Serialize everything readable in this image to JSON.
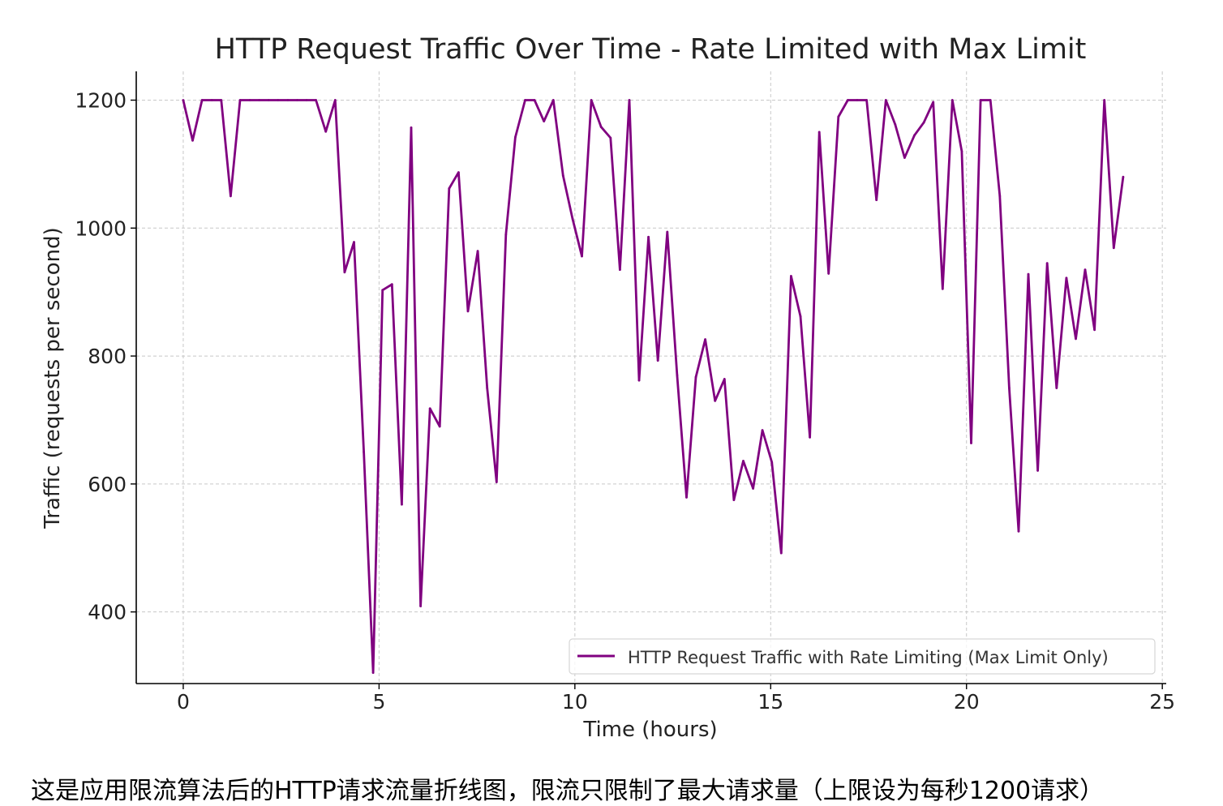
{
  "chart_data": {
    "type": "line",
    "title": "HTTP Request Traffic Over Time - Rate Limited with Max Limit",
    "xlabel": "Time (hours)",
    "ylabel": "Traffic (requests per second)",
    "xlim": [
      -1.2,
      25.1
    ],
    "ylim": [
      288,
      1245
    ],
    "xticks": [
      0,
      5,
      10,
      15,
      20,
      25
    ],
    "yticks": [
      400,
      600,
      800,
      1000,
      1200
    ],
    "grid": true,
    "legend_position": "lower-right",
    "series": [
      {
        "name": "HTTP Request Traffic with Rate Limiting (Max Limit Only)",
        "color": "#800080",
        "x": [
          0,
          0.24,
          0.48,
          0.73,
          0.97,
          1.21,
          1.45,
          1.7,
          1.94,
          2.18,
          2.42,
          2.67,
          2.91,
          3.15,
          3.39,
          3.64,
          3.88,
          4.12,
          4.36,
          4.61,
          4.85,
          5.09,
          5.33,
          5.58,
          5.82,
          6.06,
          6.3,
          6.55,
          6.79,
          7.03,
          7.27,
          7.52,
          7.76,
          8.0,
          8.24,
          8.48,
          8.73,
          8.97,
          9.21,
          9.45,
          9.7,
          9.94,
          10.18,
          10.42,
          10.67,
          10.91,
          11.15,
          11.39,
          11.64,
          11.88,
          12.12,
          12.36,
          12.61,
          12.85,
          13.09,
          13.33,
          13.58,
          13.82,
          14.06,
          14.3,
          14.55,
          14.79,
          15.03,
          15.27,
          15.52,
          15.76,
          16.0,
          16.24,
          16.48,
          16.73,
          16.97,
          17.21,
          17.45,
          17.7,
          17.94,
          18.18,
          18.42,
          18.67,
          18.91,
          19.15,
          19.39,
          19.64,
          19.88,
          20.12,
          20.36,
          20.61,
          20.85,
          21.09,
          21.33,
          21.58,
          21.82,
          22.06,
          22.3,
          22.55,
          22.79,
          23.03,
          23.27,
          23.52,
          23.76,
          24.0
        ],
        "y": [
          1200,
          1137,
          1200,
          1200,
          1200,
          1050,
          1200,
          1200,
          1200,
          1200,
          1200,
          1200,
          1200,
          1200,
          1200,
          1151,
          1200,
          931,
          978,
          650,
          305,
          903,
          912,
          568,
          1157,
          409,
          718,
          690,
          1062,
          1087,
          870,
          964,
          750,
          603,
          990,
          1142,
          1200,
          1200,
          1167,
          1200,
          1082,
          1015,
          956,
          1200,
          1158,
          1141,
          935,
          1200,
          762,
          986,
          793,
          994,
          770,
          579,
          767,
          826,
          730,
          764,
          575,
          636,
          593,
          684,
          634,
          492,
          925,
          862,
          673,
          1150,
          929,
          1174,
          1200,
          1200,
          1200,
          1044,
          1200,
          1162,
          1110,
          1145,
          1165,
          1197,
          905,
          1200,
          1120,
          664,
          1200,
          1200,
          1050,
          750,
          526,
          928,
          621,
          945,
          750,
          922,
          827,
          935,
          841,
          1200,
          969,
          1080
        ]
      }
    ]
  },
  "caption": "这是应用限流算法后的HTTP请求流量折线图，限流只限制了最大请求量（上限设为每秒1200请求）"
}
